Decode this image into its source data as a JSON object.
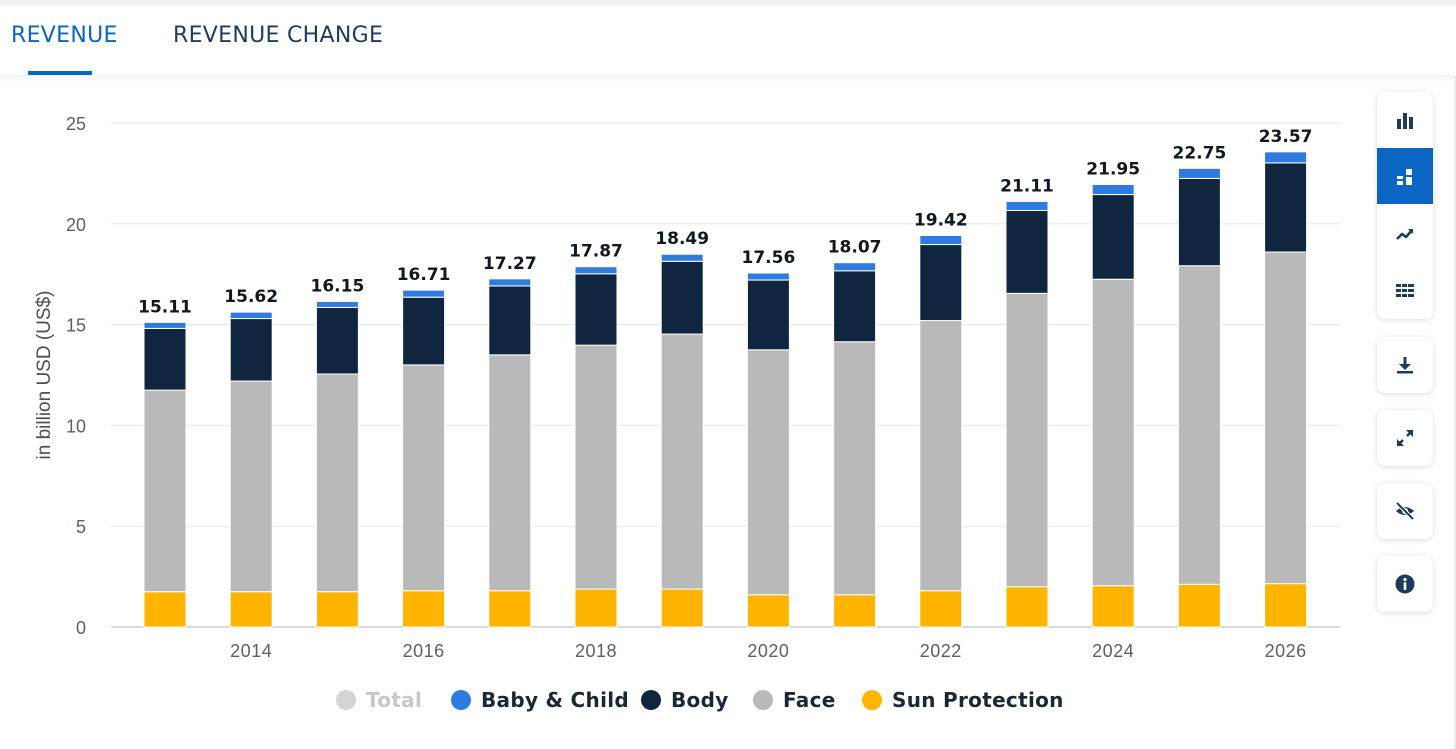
{
  "tabs": [
    {
      "label": "REVENUE",
      "active": true
    },
    {
      "label": "REVENUE CHANGE",
      "active": false
    }
  ],
  "toolbar": {
    "view_icons": [
      "bar-chart-icon",
      "stacked-bar-icon",
      "line-chart-icon",
      "table-grid-icon"
    ],
    "active_view": "stacked-bar-icon",
    "action_icons": [
      "download-icon",
      "fullscreen-icon",
      "hide-icon",
      "info-icon"
    ]
  },
  "colors": {
    "accent": "#0a66c2",
    "baby_child": "#2f7ce0",
    "body": "#10263f",
    "face": "#b9b9b9",
    "sun_protection": "#ffb400",
    "total_disabled": "#d2d4d7"
  },
  "chart_data": {
    "type": "bar",
    "stacked": true,
    "title": "",
    "xlabel": "",
    "ylabel": "in billion USD (US$)",
    "ylim": [
      0,
      25
    ],
    "yticks": [
      "0",
      "5",
      "10",
      "15",
      "20",
      "25"
    ],
    "xtick_labels": [
      "2014",
      "2016",
      "2018",
      "2020",
      "2022",
      "2024",
      "2026"
    ],
    "grid": true,
    "legend_position": "bottom",
    "categories": [
      "2013",
      "2014",
      "2015",
      "2016",
      "2017",
      "2018",
      "2019",
      "2020",
      "2021",
      "2022",
      "2023",
      "2024",
      "2025",
      "2026"
    ],
    "total_labels": [
      "15.11",
      "15.62",
      "16.15",
      "16.71",
      "17.27",
      "17.87",
      "18.49",
      "17.56",
      "18.07",
      "19.42",
      "21.11",
      "21.95",
      "22.75",
      "23.57"
    ],
    "series": [
      {
        "name": "Sun Protection",
        "color": "#ffb400",
        "values": [
          1.75,
          1.75,
          1.75,
          1.8,
          1.8,
          1.88,
          1.88,
          1.6,
          1.6,
          1.8,
          2.0,
          2.05,
          2.12,
          2.15
        ]
      },
      {
        "name": "Face",
        "color": "#b9b9b9",
        "values": [
          10.0,
          10.45,
          10.8,
          11.2,
          11.7,
          12.1,
          12.65,
          12.15,
          12.55,
          13.4,
          14.55,
          15.2,
          15.8,
          16.45
        ]
      },
      {
        "name": "Body",
        "color": "#10263f",
        "values": [
          3.06,
          3.1,
          3.3,
          3.36,
          3.42,
          3.54,
          3.61,
          3.46,
          3.52,
          3.77,
          4.11,
          4.2,
          4.33,
          4.42
        ]
      },
      {
        "name": "Baby & Child",
        "color": "#2f7ce0",
        "values": [
          0.3,
          0.32,
          0.3,
          0.35,
          0.35,
          0.35,
          0.35,
          0.35,
          0.4,
          0.45,
          0.45,
          0.5,
          0.5,
          0.55
        ]
      }
    ]
  },
  "legend": [
    {
      "label": "Total",
      "color": "#d2d4d7",
      "disabled": true
    },
    {
      "label": "Baby & Child",
      "color": "#2f7ce0",
      "disabled": false
    },
    {
      "label": "Body",
      "color": "#10263f",
      "disabled": false
    },
    {
      "label": "Face",
      "color": "#b9b9b9",
      "disabled": false
    },
    {
      "label": "Sun Protection",
      "color": "#ffb400",
      "disabled": false
    }
  ]
}
